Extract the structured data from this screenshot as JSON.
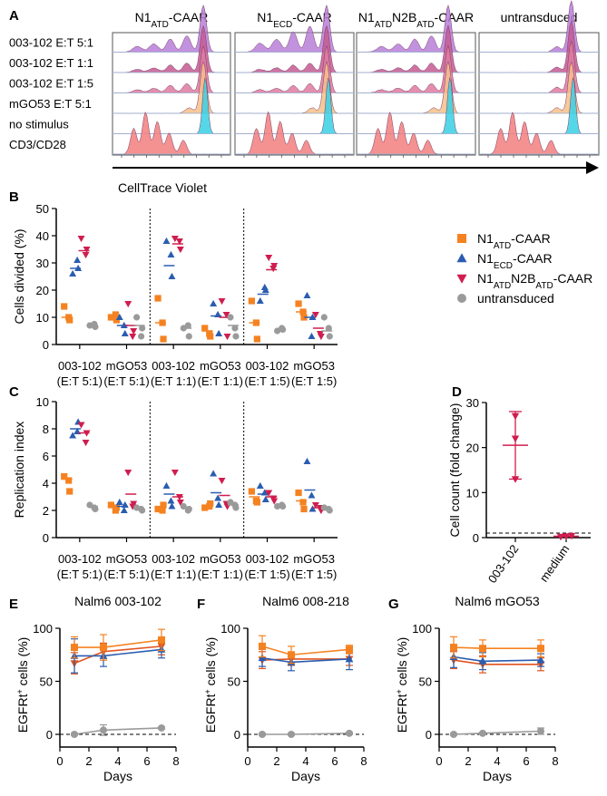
{
  "panels": {
    "A": "A",
    "B": "B",
    "C": "C",
    "D": "D",
    "E": "E",
    "F": "F",
    "G": "G"
  },
  "colors": {
    "n1atd": "#f58220",
    "n1ecd": "#2a5db0",
    "n1n2b": "#cf1d4f",
    "untr": "#9a9a9a",
    "a_purple": "#b77fd8",
    "a_mauve": "#c45a92",
    "a_pink": "#df7aa0",
    "a_peach": "#f6c08a",
    "a_cyan": "#38d0e4",
    "a_salmon": "#f27e7e"
  },
  "panelA": {
    "columns": [
      {
        "base": "N1",
        "sub": "ATD",
        "rest": "-CAAR"
      },
      {
        "base": "N1",
        "sub": "ECD",
        "rest": "-CAAR"
      },
      {
        "base": "N1",
        "sub": "ATD",
        "mid": "N2B",
        "sub2": "ATD",
        "rest": "-CAAR"
      },
      {
        "base": "untransduced"
      }
    ],
    "rows": [
      "003-102 E:T 5:1",
      "003-102 E:T 1:1",
      "003-102 E:T 1:5",
      "mGO53 E:T 5:1",
      "no stimulus",
      "CD3/CD28"
    ],
    "xlabel": "CellTrace Violet"
  },
  "legend": [
    {
      "base": "N1",
      "sub": "ATD",
      "rest": "-CAAR",
      "color": "#f58220",
      "marker": "square"
    },
    {
      "base": "N1",
      "sub": "ECD",
      "rest": "-CAAR",
      "color": "#2a5db0",
      "marker": "triangle"
    },
    {
      "base": "N1",
      "sub": "ATD",
      "mid": "N2B",
      "sub2": "ATD",
      "rest": "-CAAR",
      "color": "#cf1d4f",
      "marker": "invtriangle"
    },
    {
      "base": "untransduced",
      "color": "#9a9a9a",
      "marker": "circle"
    }
  ],
  "chart_data": [
    {
      "id": "B",
      "type": "scatter",
      "ylabel": "Cells divided (%)",
      "ylim": [
        0,
        50
      ],
      "yticks": [
        0,
        10,
        20,
        30,
        40,
        50
      ],
      "groups": [
        {
          "label": [
            "003-102",
            "(E:T 5:1)"
          ],
          "series": [
            {
              "values": [
                14,
                9,
                10
              ],
              "mean": 10
            },
            {
              "values": [
                26,
                28,
                31
              ],
              "mean": 28
            },
            {
              "values": [
                39,
                35,
                33
              ],
              "mean": 34.5
            },
            {
              "values": [
                7,
                6.5,
                7.5
              ],
              "mean": 7
            }
          ]
        },
        {
          "label": [
            "mGO53",
            "(E:T 5:1)"
          ],
          "series": [
            {
              "values": [
                10,
                9,
                11
              ],
              "mean": 10
            },
            {
              "values": [
                10,
                4,
                7
              ],
              "mean": 7
            },
            {
              "values": [
                15,
                5,
                3
              ],
              "mean": 7
            },
            {
              "values": [
                10,
                6,
                3
              ],
              "mean": 7
            }
          ]
        },
        {
          "label": [
            "003-102",
            "(E:T 1:1)"
          ],
          "series": [
            {
              "values": [
                17,
                2,
                8
              ],
              "mean": 8
            },
            {
              "values": [
                38,
                25,
                33
              ],
              "mean": 29
            },
            {
              "values": [
                39,
                35,
                38
              ],
              "mean": 37
            },
            {
              "values": [
                6,
                3,
                7
              ],
              "mean": 6
            }
          ]
        },
        {
          "label": [
            "mGO53",
            "(E:T 1:1)"
          ],
          "series": [
            {
              "values": [
                6,
                3,
                4
              ],
              "mean": 5
            },
            {
              "values": [
                15,
                4,
                11
              ],
              "mean": 10.5
            },
            {
              "values": [
                16,
                3,
                11
              ],
              "mean": 10
            },
            {
              "values": [
                10,
                3,
                6
              ],
              "mean": 7
            }
          ]
        },
        {
          "label": [
            "003-102",
            "(E:T 1:5)"
          ],
          "series": [
            {
              "values": [
                16,
                2,
                8
              ],
              "mean": 8
            },
            {
              "values": [
                16,
                20,
                21
              ],
              "mean": 18.5
            },
            {
              "values": [
                32,
                29,
                28
              ],
              "mean": 27.5
            },
            {
              "values": [
                5,
                5.5,
                6
              ],
              "mean": 5.5
            }
          ]
        },
        {
          "label": [
            "mGO53",
            "(E:T 1:5)"
          ],
          "series": [
            {
              "values": [
                15,
                10,
                12
              ],
              "mean": 12
            },
            {
              "values": [
                18,
                10,
                3
              ],
              "mean": 10
            },
            {
              "values": [
                11,
                3,
                4
              ],
              "mean": 6
            },
            {
              "values": [
                10,
                3,
                6
              ],
              "mean": 5
            }
          ]
        }
      ]
    },
    {
      "id": "C",
      "type": "scatter",
      "ylabel": "Replication index",
      "ylim": [
        0,
        10
      ],
      "yticks": [
        0,
        2,
        4,
        6,
        8,
        10
      ],
      "groups": [
        {
          "label": [
            "003-102",
            "(E:T 5:1)"
          ],
          "series": [
            {
              "values": [
                4.5,
                3.4,
                4.2
              ],
              "mean": 4.3
            },
            {
              "values": [
                7.5,
                8.5,
                7.8
              ],
              "mean": 8
            },
            {
              "values": [
                8.3,
                7.7,
                7.0
              ],
              "mean": 7.7
            },
            {
              "values": [
                2.4,
                2.1,
                2.2
              ],
              "mean": 2.3
            }
          ]
        },
        {
          "label": [
            "mGO53",
            "(E:T 5:1)"
          ],
          "series": [
            {
              "values": [
                2.4,
                2.2,
                2.0
              ],
              "mean": 2.3
            },
            {
              "values": [
                2.6,
                2.4,
                2.0
              ],
              "mean": 2.3
            },
            {
              "values": [
                4.8,
                2.5,
                2.3
              ],
              "mean": 3.2
            },
            {
              "values": [
                2.2,
                2.0,
                2.1
              ],
              "mean": 2.1
            }
          ]
        },
        {
          "label": [
            "003-102",
            "(E:T 1:1)"
          ],
          "series": [
            {
              "values": [
                2.1,
                2.4,
                2.0
              ],
              "mean": 2.2
            },
            {
              "values": [
                3.8,
                2.3,
                2.7
              ],
              "mean": 3.2
            },
            {
              "values": [
                4.8,
                2.6,
                3.0
              ],
              "mean": 3.0
            },
            {
              "values": [
                2.3,
                2.1,
                2.0
              ],
              "mean": 2.2
            }
          ]
        },
        {
          "label": [
            "mGO53",
            "(E:T 1:1)"
          ],
          "series": [
            {
              "values": [
                2.2,
                2.5,
                2.3
              ],
              "mean": 2.3
            },
            {
              "values": [
                4.7,
                2.4,
                2.9
              ],
              "mean": 3.3
            },
            {
              "values": [
                4.2,
                2.3,
                2.5
              ],
              "mean": 3.1
            },
            {
              "values": [
                2.6,
                2.2,
                2.4
              ],
              "mean": 2.4
            }
          ]
        },
        {
          "label": [
            "003-102",
            "(E:T 1:5)"
          ],
          "series": [
            {
              "values": [
                3.4,
                2.6,
                2.7
              ],
              "mean": 3.0
            },
            {
              "values": [
                3.8,
                2.8,
                3.3
              ],
              "mean": 3.2
            },
            {
              "values": [
                3.3,
                2.7,
                2.9
              ],
              "mean": 3.0
            },
            {
              "values": [
                2.3,
                2.3,
                2.4
              ],
              "mean": 2.3
            }
          ]
        },
        {
          "label": [
            "mGO53",
            "(E:T 1:5)"
          ],
          "series": [
            {
              "values": [
                3.3,
                2.1,
                2.6
              ],
              "mean": 2.7
            },
            {
              "values": [
                5.6,
                2.1,
                3.1
              ],
              "mean": 3.5
            },
            {
              "values": [
                2.4,
                2.0,
                2.2
              ],
              "mean": 2.2
            },
            {
              "values": [
                2.2,
                2.0,
                2.1
              ],
              "mean": 2.1
            }
          ]
        }
      ]
    },
    {
      "id": "D",
      "type": "scatter",
      "ylabel": "Cell count (fold change)",
      "ylim": [
        0,
        30
      ],
      "yticks": [
        0,
        10,
        20,
        30
      ],
      "categories": [
        "003-102",
        "medium"
      ],
      "points": [
        [
          27,
          22,
          13
        ],
        [
          0.3,
          0.2,
          0.4
        ]
      ],
      "mean": [
        20.5,
        0.3
      ],
      "err": [
        [
          13,
          28
        ],
        null
      ],
      "reference": 1
    },
    {
      "id": "E",
      "type": "line",
      "title": "Nalm6 003-102",
      "xlabel": "Days",
      "ylabel": "EGFRt+ cells (%)",
      "xlim": [
        0,
        8
      ],
      "ylim": [
        0,
        100
      ],
      "xticks": [
        0,
        2,
        4,
        6,
        8
      ],
      "yticks": [
        0,
        50,
        100
      ],
      "reference": 0,
      "x": [
        1,
        3,
        7
      ],
      "series": [
        {
          "marker": "square",
          "values": [
            82,
            82,
            89
          ],
          "err": [
            10,
            12,
            10
          ]
        },
        {
          "marker": "triangle",
          "values": [
            74,
            74,
            80
          ],
          "err": [
            16,
            10,
            8
          ]
        },
        {
          "marker": "invtriangle",
          "values": [
            67,
            78,
            83
          ],
          "err": [
            10,
            8,
            8
          ]
        },
        {
          "marker": "circle",
          "values": [
            0,
            4,
            6
          ],
          "err": [
            1,
            5,
            1
          ]
        }
      ]
    },
    {
      "id": "F",
      "type": "line",
      "title": "Nalm6 008-218",
      "xlabel": "Days",
      "ylabel": "EGFRt+ cells (%)",
      "xlim": [
        0,
        8
      ],
      "ylim": [
        0,
        100
      ],
      "xticks": [
        0,
        2,
        4,
        6,
        8
      ],
      "yticks": [
        0,
        50,
        100
      ],
      "reference": 0,
      "x": [
        1,
        3,
        7
      ],
      "series": [
        {
          "marker": "square",
          "values": [
            83,
            75,
            80
          ],
          "err": [
            10,
            8,
            4
          ]
        },
        {
          "marker": "triangle",
          "values": [
            72,
            68,
            71
          ],
          "err": [
            8,
            8,
            10
          ]
        },
        {
          "marker": "invtriangle",
          "values": [
            70,
            71,
            71
          ],
          "err": [
            8,
            6,
            6
          ]
        },
        {
          "marker": "circle",
          "values": [
            0,
            0,
            1
          ],
          "err": [
            1,
            1,
            1
          ]
        }
      ]
    },
    {
      "id": "G",
      "type": "line",
      "title": "Nalm6 mGO53",
      "xlabel": "Days",
      "ylabel": "EGFRt+ cells (%)",
      "xlim": [
        0,
        8
      ],
      "ylim": [
        0,
        100
      ],
      "xticks": [
        0,
        2,
        4,
        6,
        8
      ],
      "yticks": [
        0,
        50,
        100
      ],
      "reference": 0,
      "x": [
        1,
        3,
        7
      ],
      "series": [
        {
          "marker": "square",
          "values": [
            82,
            81,
            81
          ],
          "err": [
            10,
            8,
            8
          ]
        },
        {
          "marker": "triangle",
          "values": [
            73,
            69,
            70
          ],
          "err": [
            10,
            8,
            6
          ]
        },
        {
          "marker": "invtriangle",
          "values": [
            70,
            66,
            66
          ],
          "err": [
            8,
            8,
            6
          ]
        },
        {
          "marker": "circle",
          "values": [
            0,
            1,
            3
          ],
          "err": [
            1,
            1,
            3
          ]
        }
      ]
    }
  ]
}
